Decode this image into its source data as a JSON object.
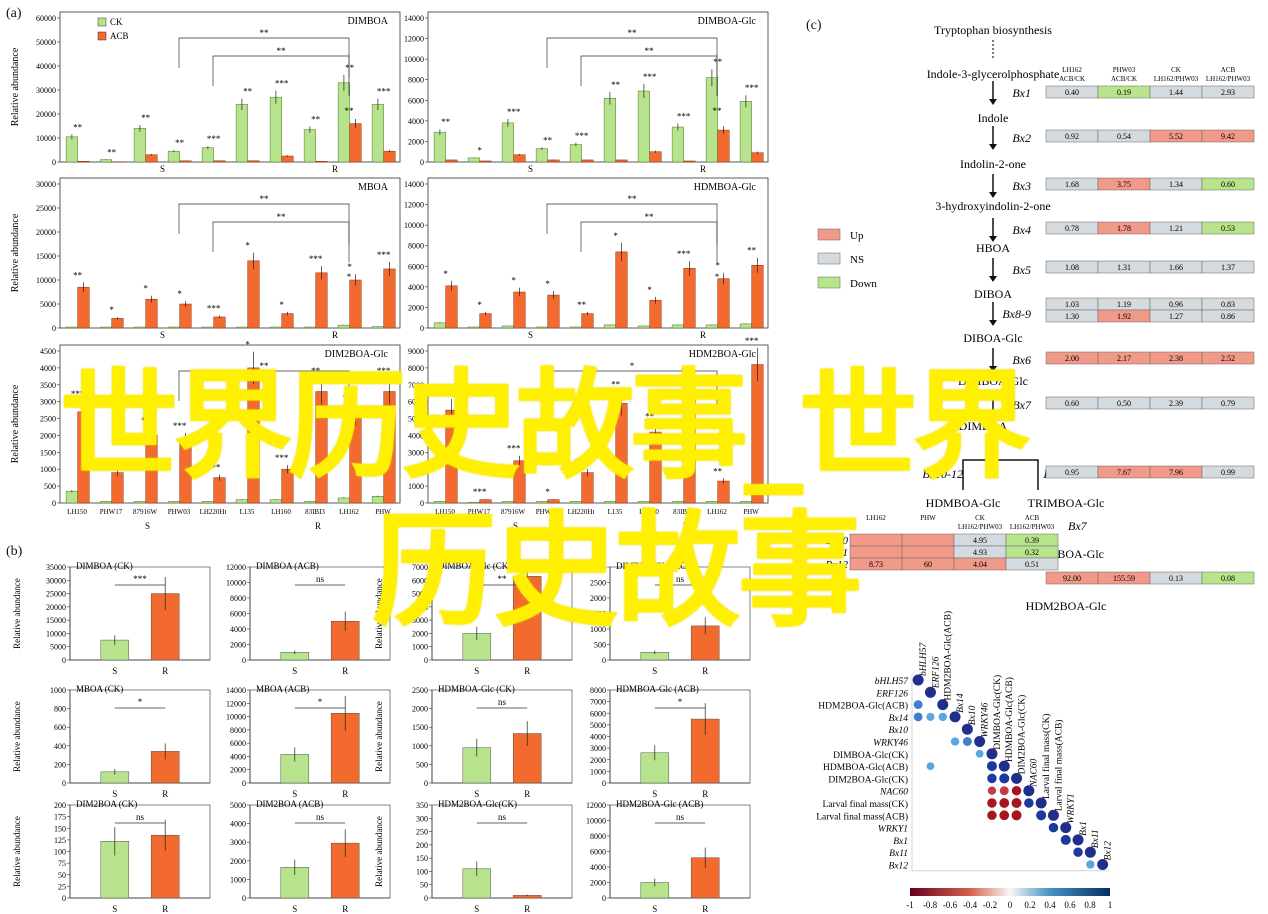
{
  "panel_labels": {
    "a": "(a)",
    "b": "(b)",
    "c": "(c)"
  },
  "watermark": {
    "line1": "世界历史故事_世界",
    "line2": "历史故事"
  },
  "colors": {
    "ck": "#b6e38c",
    "acb": "#f26a2e",
    "up": "#f29a8a",
    "ns": "#d4dadd",
    "down": "#b8e48c",
    "axis": "#333333"
  },
  "panel_a": {
    "ylabel": "Relative abundance",
    "legend": {
      "ck": "CK",
      "acb": "ACB"
    },
    "groups": {
      "s": "S",
      "r": "R"
    },
    "x_labels": [
      "LH150",
      "PHW17",
      "87916W",
      "PHW03",
      "LH220Ht",
      "L135",
      "LH160",
      "83IBI3",
      "LH162",
      "PHW"
    ],
    "charts": [
      {
        "title": "DIMBOA",
        "ymax": 60000,
        "ticks": [
          0,
          10000,
          20000,
          30000,
          40000,
          50000,
          60000
        ],
        "ck": [
          10500,
          1000,
          14000,
          4500,
          6000,
          24000,
          27000,
          13500,
          33000,
          24000
        ],
        "acb": [
          300,
          100,
          3000,
          500,
          500,
          500,
          2500,
          300,
          16000,
          4500
        ],
        "sig": [
          "**",
          "**",
          "**",
          "**",
          "***",
          "**",
          "***",
          "**",
          "**",
          "***"
        ],
        "brackets": [
          {
            "from": 3,
            "to": 8,
            "label": "**"
          },
          {
            "from": 4,
            "to": 8,
            "label": "**"
          },
          {
            "from": 8,
            "to": 8,
            "label": "**"
          }
        ]
      },
      {
        "title": "DIMBOA-Glc",
        "ymax": 14000,
        "ticks": [
          0,
          2000,
          4000,
          6000,
          8000,
          10000,
          12000,
          14000
        ],
        "ck": [
          2900,
          400,
          3800,
          1300,
          1700,
          6200,
          6900,
          3400,
          8200,
          5900
        ],
        "acb": [
          200,
          100,
          700,
          200,
          200,
          200,
          1000,
          100,
          3100,
          900
        ],
        "sig": [
          "**",
          "*",
          "***",
          "**",
          "***",
          "**",
          "***",
          "***",
          "**",
          "***"
        ],
        "brackets": [
          {
            "from": 3,
            "to": 8,
            "label": "**"
          },
          {
            "from": 4,
            "to": 8,
            "label": "**"
          },
          {
            "from": 8,
            "to": 8,
            "label": "**"
          }
        ]
      },
      {
        "title": "MBOA",
        "ymax": 30000,
        "ticks": [
          0,
          5000,
          10000,
          15000,
          20000,
          25000,
          30000
        ],
        "ck": [
          200,
          200,
          200,
          200,
          200,
          200,
          200,
          200,
          600,
          300
        ],
        "acb": [
          8500,
          2000,
          6000,
          5000,
          2300,
          14000,
          3000,
          11500,
          10000,
          12300
        ],
        "sig": [
          "**",
          "*",
          "*",
          "*",
          "***",
          "*",
          "*",
          "***",
          "*",
          "***"
        ],
        "brackets": [
          {
            "from": 3,
            "to": 8,
            "label": "**"
          },
          {
            "from": 4,
            "to": 8,
            "label": "**"
          },
          {
            "from": 8,
            "to": 8,
            "label": "*"
          }
        ]
      },
      {
        "title": "HDMBOA-Glc",
        "ymax": 14000,
        "ticks": [
          0,
          2000,
          4000,
          6000,
          8000,
          10000,
          12000,
          14000
        ],
        "ck": [
          500,
          100,
          200,
          100,
          100,
          300,
          200,
          300,
          300,
          400
        ],
        "acb": [
          4100,
          1400,
          3500,
          3200,
          1400,
          7400,
          2700,
          5800,
          4800,
          6100
        ],
        "sig": [
          "*",
          "*",
          "*",
          "*",
          "**",
          "*",
          "*",
          "***",
          "*",
          "**"
        ],
        "brackets": [
          {
            "from": 3,
            "to": 8,
            "label": "**"
          },
          {
            "from": 4,
            "to": 8,
            "label": "**"
          },
          {
            "from": 8,
            "to": 8,
            "label": "*"
          }
        ]
      },
      {
        "title": "DIM2BOA-Glc",
        "ymax": 4500,
        "ticks": [
          0,
          500,
          1000,
          1500,
          2000,
          2500,
          3000,
          3500,
          4000,
          4500
        ],
        "ck": [
          350,
          50,
          50,
          50,
          50,
          100,
          100,
          50,
          150,
          200
        ],
        "acb": [
          2700,
          900,
          2000,
          1850,
          750,
          4000,
          1000,
          3300,
          2600,
          3300
        ],
        "sig": [
          "***",
          "**",
          "**",
          "***",
          "***",
          "*",
          "***",
          "**",
          "***",
          "***"
        ],
        "brackets": [
          {
            "from": 3,
            "to": 8,
            "label": "**"
          }
        ]
      },
      {
        "title": "HDM2BOA-Glc",
        "ymax": 9000,
        "ticks": [
          0,
          1000,
          2000,
          3000,
          4000,
          5000,
          6000,
          7000,
          8000,
          9000
        ],
        "ck": [
          100,
          50,
          100,
          100,
          100,
          100,
          100,
          100,
          100,
          100
        ],
        "acb": [
          5500,
          200,
          2500,
          200,
          1800,
          5900,
          4200,
          6600,
          1300,
          8200
        ],
        "sig": [
          "***",
          "***",
          "***",
          "*",
          "***",
          "**",
          "**",
          "*",
          "**",
          "***"
        ],
        "brackets": [
          {
            "from": 3,
            "to": 8,
            "label": "*"
          }
        ]
      }
    ]
  },
  "panel_b": {
    "ylabel": "Relative abundance",
    "x_labels": [
      "S",
      "R"
    ],
    "charts": [
      {
        "title": "DIMBOA (CK)",
        "ticks": [
          0,
          5000,
          10000,
          15000,
          20000,
          25000,
          30000,
          35000
        ],
        "ymax": 35000,
        "values": [
          7500,
          25000
        ],
        "sig": "***"
      },
      {
        "title": "DIMBOA (ACB)",
        "ticks": [
          0,
          2000,
          4000,
          6000,
          8000,
          10000,
          12000
        ],
        "ymax": 12000,
        "values": [
          1000,
          5000
        ],
        "sig": "ns"
      },
      {
        "title": "DIMBOA-Glc (CK)",
        "ticks": [
          0,
          1000,
          2000,
          3000,
          4000,
          5000,
          6000,
          7000
        ],
        "ymax": 7000,
        "values": [
          2000,
          6300
        ],
        "sig": "**"
      },
      {
        "title": "DIMBOA-Glc (ACB)",
        "ticks": [
          0,
          500,
          1000,
          1500,
          2000,
          2500,
          3000
        ],
        "ymax": 3000,
        "values": [
          250,
          1100
        ],
        "sig": "ns"
      },
      {
        "title": "MBOA (CK)",
        "ticks": [
          0,
          200,
          400,
          600,
          800,
          1000
        ],
        "ymax": 1000,
        "values": [
          120,
          340
        ],
        "sig": "*"
      },
      {
        "title": "MBOA (ACB)",
        "ticks": [
          0,
          2000,
          4000,
          6000,
          8000,
          10000,
          12000,
          14000
        ],
        "ymax": 14000,
        "values": [
          4300,
          10500
        ],
        "sig": "*"
      },
      {
        "title": "HDMBOA-Glc (CK)",
        "ticks": [
          0,
          500,
          1000,
          1500,
          2000,
          2500
        ],
        "ymax": 2500,
        "values": [
          950,
          1330
        ],
        "sig": "ns"
      },
      {
        "title": "HDMBOA-Glc (ACB)",
        "ticks": [
          0,
          1000,
          2000,
          3000,
          4000,
          5000,
          6000,
          7000,
          8000
        ],
        "ymax": 8000,
        "values": [
          2600,
          5500
        ],
        "sig": "*"
      },
      {
        "title": "DIM2BOA (CK)",
        "ticks": [
          0,
          25,
          50,
          75,
          100,
          125,
          150,
          175,
          200
        ],
        "ymax": 200,
        "values": [
          122,
          135
        ],
        "sig": "ns"
      },
      {
        "title": "DIM2BOA (ACB)",
        "ticks": [
          0,
          1000,
          2000,
          3000,
          4000,
          5000
        ],
        "ymax": 5000,
        "values": [
          1650,
          2950
        ],
        "sig": "ns"
      },
      {
        "title": "HDM2BOA-Glc(CK)",
        "ticks": [
          0,
          50,
          100,
          150,
          200,
          250,
          300,
          350
        ],
        "ymax": 350,
        "values": [
          110,
          10
        ],
        "sig": "ns"
      },
      {
        "title": "HDM2BOA-Glc (ACB)",
        "ticks": [
          0,
          2000,
          4000,
          6000,
          8000,
          10000,
          12000
        ],
        "ymax": 12000,
        "values": [
          2000,
          5200
        ],
        "sig": "ns"
      }
    ]
  },
  "panel_c": {
    "pathway": {
      "top": "Tryptophan biosynthesis",
      "compounds": [
        "Indole-3-glycerolphosphate",
        "Indole",
        "Indolin-2-one",
        "3-hydroxyindolin-2-one",
        "HBOA",
        "DIBOA",
        "DIBOA-Glc",
        "DIMBOA-Glc",
        "DIMBOA",
        "HDMBOA-Glc",
        "TRIMBOA-Glc",
        "DIM2BOA-Glc",
        "HDM2BOA-Glc"
      ],
      "enzymes": [
        "Bx1",
        "Bx2",
        "Bx3",
        "Bx4",
        "Bx5",
        "Bx8-9",
        "Bx6",
        "Bx7",
        "Bx10-12",
        "Bx13",
        "Bx7",
        "Bx14"
      ],
      "table_headers": [
        "LH162 ACB/CK",
        "PHW03 ACB/CK",
        "CK LH162/PHW03",
        "ACB LH162/PHW03"
      ],
      "rows": [
        {
          "gene": "Bx1",
          "values": [
            "0.40",
            "0.19",
            "1.44",
            "2.93"
          ],
          "status": [
            "ns",
            "down",
            "ns",
            "ns"
          ]
        },
        {
          "gene": "Bx2",
          "values": [
            "0.92",
            "0.54",
            "5.52",
            "9.42"
          ],
          "status": [
            "ns",
            "ns",
            "up",
            "up"
          ]
        },
        {
          "gene": "Bx3",
          "values": [
            "1.68",
            "3.75",
            "1.34",
            "0.60"
          ],
          "status": [
            "ns",
            "up",
            "ns",
            "down"
          ]
        },
        {
          "gene": "Bx4",
          "values": [
            "0.78",
            "1.78",
            "1.21",
            "0.53"
          ],
          "status": [
            "ns",
            "up",
            "ns",
            "down"
          ]
        },
        {
          "gene": "Bx5",
          "values": [
            "1.08",
            "1.31",
            "1.66",
            "1.37"
          ],
          "status": [
            "ns",
            "ns",
            "ns",
            "ns"
          ]
        },
        {
          "gene": "Bx8",
          "values": [
            "1.03",
            "1.19",
            "0.96",
            "0.83"
          ],
          "status": [
            "ns",
            "ns",
            "ns",
            "ns"
          ]
        },
        {
          "gene": "Bx9",
          "values": [
            "1.30",
            "1.92",
            "1.27",
            "0.86"
          ],
          "status": [
            "ns",
            "up",
            "ns",
            "ns"
          ]
        },
        {
          "gene": "Bx6",
          "values": [
            "2.00",
            "2.17",
            "2.38",
            "2.52"
          ],
          "status": [
            "up",
            "up",
            "up",
            "up"
          ]
        },
        {
          "gene": "Bx7",
          "values": [
            "0.60",
            "0.50",
            "2.39",
            "0.79"
          ],
          "status": [
            "ns",
            "ns",
            "ns",
            "ns"
          ]
        },
        {
          "gene": "Bx13",
          "values": [
            "0.95",
            "7.67",
            "7.96",
            "0.99"
          ],
          "status": [
            "ns",
            "up",
            "up",
            "ns"
          ]
        },
        {
          "gene": "Bx14",
          "values": [
            "92.00",
            "155.59",
            "0.13",
            "0.08"
          ],
          "status": [
            "up",
            "up",
            "ns",
            "down"
          ]
        }
      ],
      "side_table_headers": [
        "LH162",
        "PHW",
        "CK LH162/PHW03",
        "ACB LH162/PHW03"
      ],
      "side_rows": [
        {
          "gene": "Bx10",
          "values": [
            "",
            "",
            "4.95",
            "0.39"
          ],
          "status": [
            "up",
            "up",
            "ns",
            "down"
          ]
        },
        {
          "gene": "Bx11",
          "values": [
            "",
            "",
            "4.93",
            "0.32"
          ],
          "status": [
            "up",
            "up",
            "ns",
            "down"
          ]
        },
        {
          "gene": "Bx12",
          "values": [
            "8.73",
            "60",
            "4.04",
            "0.51"
          ],
          "status": [
            "up",
            "up",
            "up",
            "ns"
          ]
        }
      ]
    },
    "legend": [
      {
        "key": "up",
        "label": "Up"
      },
      {
        "key": "ns",
        "label": "NS"
      },
      {
        "key": "down",
        "label": "Down"
      }
    ],
    "corr": {
      "labels": [
        "bHLH57",
        "ERF126",
        "HDM2BOA-Glc(ACB)",
        "Bx14",
        "Bx10",
        "WRKY46",
        "DIMBOA-Glc(CK)",
        "HDMBOA-Glc(ACB)",
        "DIM2BOA-Glc(CK)",
        "NAC60",
        "Larval final mass(CK)",
        "Larval final mass(ACB)",
        "WRKY1",
        "Bx1",
        "Bx11",
        "Bx12"
      ],
      "italic": [
        true,
        true,
        false,
        true,
        true,
        true,
        false,
        false,
        false,
        true,
        false,
        false,
        true,
        true,
        true,
        true
      ],
      "cells": [
        [
          2,
          0,
          0.7
        ],
        [
          3,
          0,
          0.7
        ],
        [
          3,
          1,
          0.55
        ],
        [
          3,
          2,
          0.6
        ],
        [
          5,
          4,
          0.7
        ],
        [
          5,
          3,
          0.6
        ],
        [
          6,
          5,
          0.5
        ],
        [
          7,
          1,
          0.5
        ],
        [
          7,
          6,
          0.9
        ],
        [
          8,
          7,
          0.9
        ],
        [
          8,
          6,
          0.8
        ],
        [
          9,
          8,
          -0.8
        ],
        [
          9,
          7,
          -0.7
        ],
        [
          9,
          6,
          -0.6
        ],
        [
          10,
          9,
          0.8
        ],
        [
          10,
          6,
          -0.8
        ],
        [
          10,
          7,
          -0.85
        ],
        [
          10,
          8,
          -0.9
        ],
        [
          11,
          10,
          0.9
        ],
        [
          11,
          6,
          -0.8
        ],
        [
          11,
          7,
          -0.85
        ],
        [
          11,
          8,
          -0.9
        ],
        [
          12,
          11,
          0.8
        ],
        [
          13,
          12,
          0.9
        ],
        [
          14,
          13,
          0.8
        ],
        [
          15,
          14,
          0.6
        ]
      ],
      "colorbar_ticks": [
        "-1",
        "-0.8",
        "-0.6",
        "-0.4",
        "-0.2",
        "0",
        "0.2",
        "0.4",
        "0.6",
        "0.8",
        "1"
      ]
    }
  }
}
